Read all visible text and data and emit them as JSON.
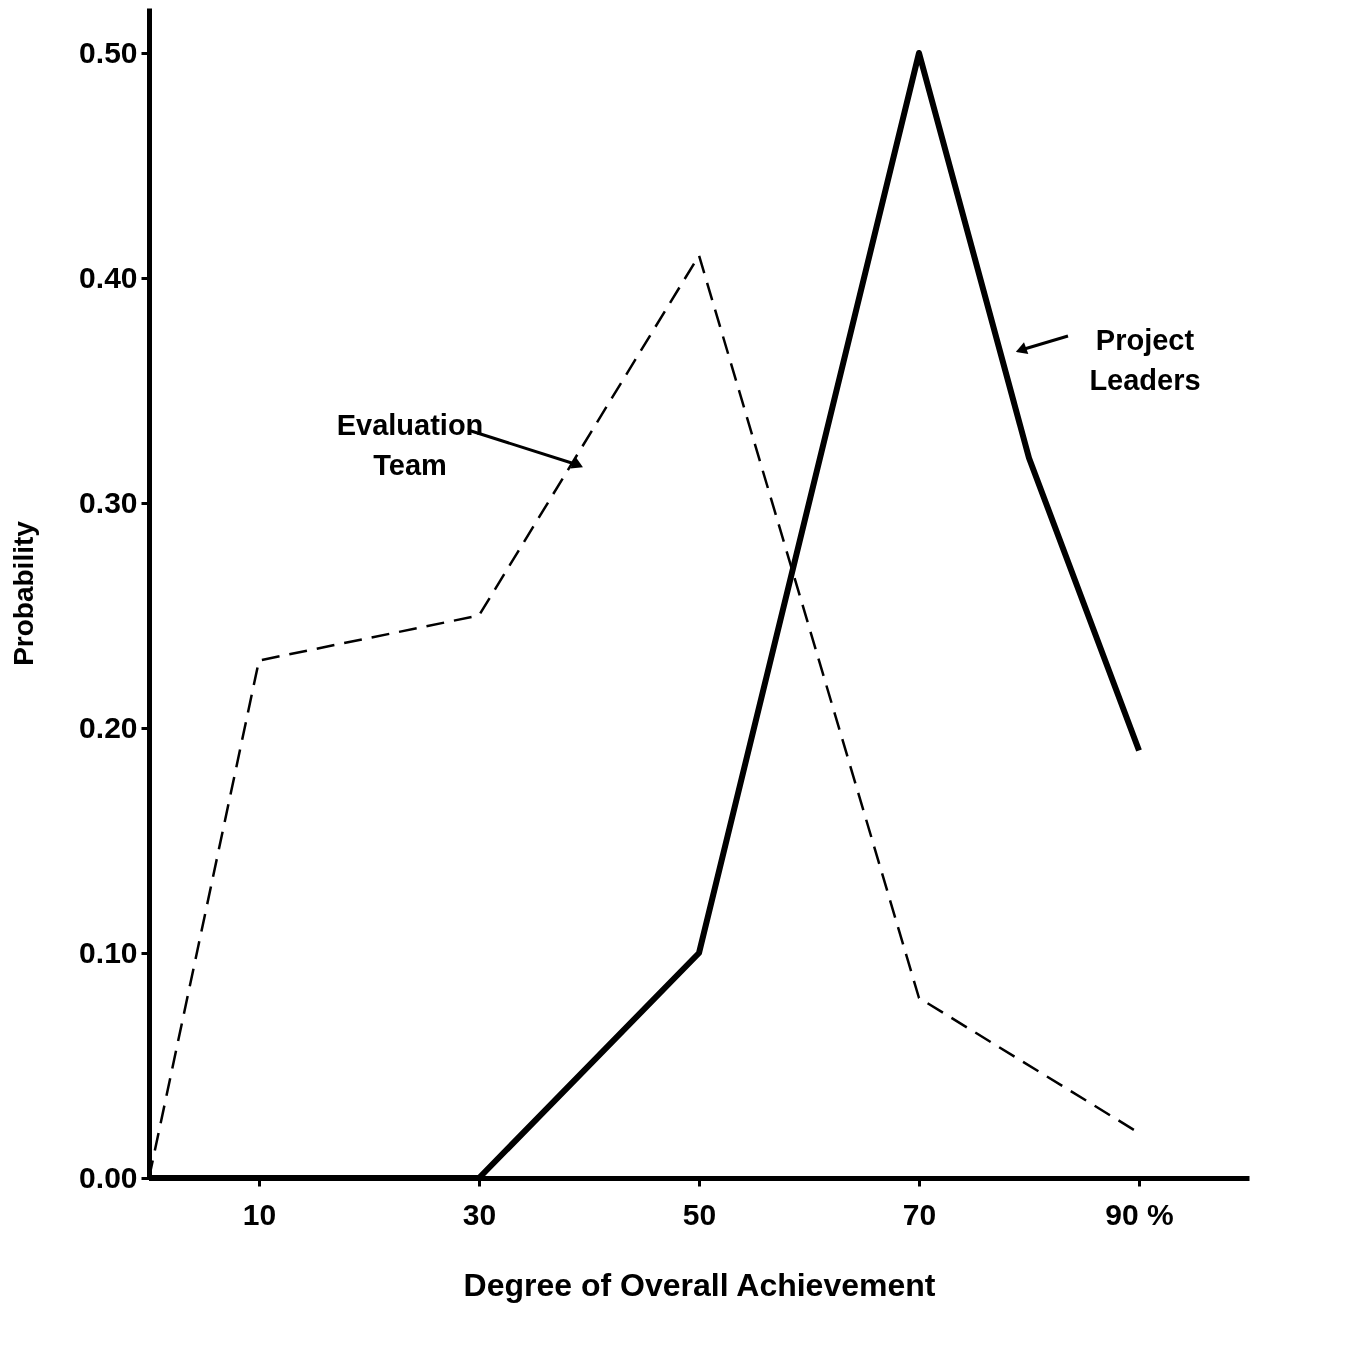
{
  "chart_data": {
    "type": "line",
    "xlabel": "Degree of Overall Achievement",
    "ylabel": "Probability",
    "xlim": [
      0,
      100
    ],
    "xticks": [
      10,
      30,
      50,
      70,
      {
        "value": 90,
        "label": "90 %"
      }
    ],
    "ylim": [
      0,
      0.52
    ],
    "yticks": [
      {
        "value": 0,
        "label": "0.00"
      },
      {
        "value": 0.1,
        "label": "0.10"
      },
      {
        "value": 0.2,
        "label": "0.20"
      },
      {
        "value": 0.3,
        "label": "0.30"
      },
      {
        "value": 0.4,
        "label": "0.40"
      },
      {
        "value": 0.5,
        "label": "0.50"
      }
    ],
    "grid": false,
    "marker": "none",
    "series": [
      {
        "color": "#000000",
        "line_style": "dashed",
        "x": [
          0,
          10,
          30,
          50,
          70,
          90
        ],
        "values": [
          0,
          0.23,
          0.25,
          0.41,
          0.08,
          0.02
        ]
      },
      {
        "color": "#000000",
        "line_style": "solid",
        "x": [
          0,
          30,
          50,
          70,
          80,
          90
        ],
        "values": [
          0,
          0,
          0.1,
          0.5,
          0.32,
          0.19
        ]
      }
    ],
    "annotations": [
      "Evaluation Team",
      "Project Leaders"
    ]
  }
}
